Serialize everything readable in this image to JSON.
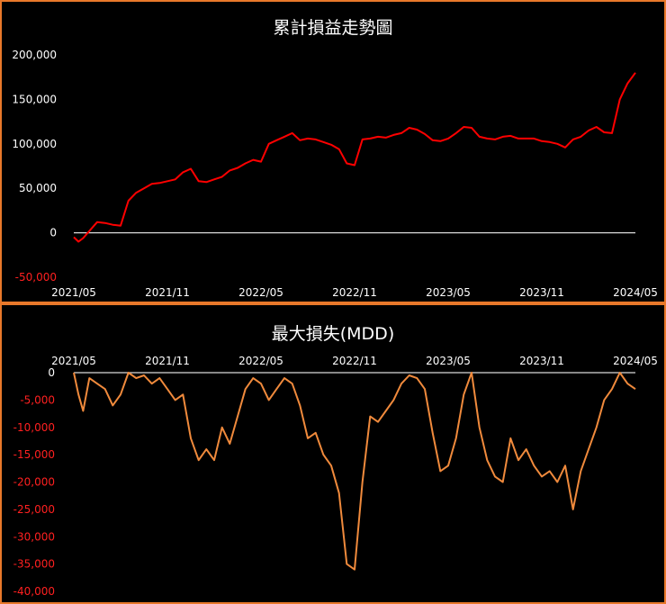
{
  "chart_data": [
    {
      "type": "line",
      "title": "累計損益走勢圖",
      "xlabel": "",
      "ylabel": "",
      "ylim": [
        -50000,
        200000
      ],
      "yticks": [
        {
          "v": 200000,
          "label": "200,000",
          "color": "#ffffff"
        },
        {
          "v": 150000,
          "label": "150,000",
          "color": "#ffffff"
        },
        {
          "v": 100000,
          "label": "100,000",
          "color": "#ffffff"
        },
        {
          "v": 50000,
          "label": "50,000",
          "color": "#ffffff"
        },
        {
          "v": 0,
          "label": "0",
          "color": "#ffffff"
        },
        {
          "v": -50000,
          "label": "-50,000",
          "color": "#ff2020"
        }
      ],
      "xticks": [
        "2021/05",
        "2021/11",
        "2022/05",
        "2022/11",
        "2023/05",
        "2023/11",
        "2024/05"
      ],
      "zero_line": true,
      "line_color": "#ff0000",
      "series": [
        {
          "x": [
            0,
            0.3,
            0.6,
            1,
            1.5,
            2,
            2.5,
            3,
            3.5,
            4,
            4.5,
            5,
            5.5,
            6,
            6.5,
            7,
            7.5,
            8,
            8.5,
            9,
            9.5,
            10,
            10.5,
            11,
            11.5,
            12,
            12.5,
            13,
            13.5,
            14,
            14.5,
            15,
            15.5,
            16,
            16.5,
            17,
            17.5,
            18,
            18.5,
            19,
            19.5,
            20,
            20.5,
            21,
            21.5,
            22,
            22.5,
            23,
            23.5,
            24,
            24.5,
            25,
            25.5,
            26,
            26.5,
            27,
            27.5,
            28,
            28.5,
            29,
            29.5,
            30,
            30.5,
            31,
            31.5,
            32,
            32.5,
            33,
            33.5,
            34,
            34.5,
            35,
            35.5,
            36
          ],
          "y": [
            -5000,
            -10000,
            -6000,
            2000,
            12000,
            11000,
            9000,
            8000,
            36000,
            45000,
            50000,
            55000,
            56000,
            58000,
            60000,
            68000,
            72000,
            58000,
            57000,
            60000,
            63000,
            70000,
            73000,
            78000,
            82000,
            80000,
            100000,
            104000,
            108000,
            112000,
            104000,
            106000,
            105000,
            102000,
            99000,
            94000,
            78000,
            76000,
            105000,
            106000,
            108000,
            107000,
            110000,
            112000,
            118000,
            116000,
            111000,
            104000,
            103000,
            106000,
            112000,
            119000,
            118000,
            108000,
            106000,
            105000,
            108000,
            109000,
            106000,
            106000,
            106000,
            103000,
            102000,
            100000,
            96000,
            105000,
            108000,
            115000,
            119000,
            113000,
            112000,
            150000,
            168000,
            180000
          ]
        }
      ]
    },
    {
      "type": "line",
      "title": "最大損失(MDD)",
      "xlabel": "",
      "ylabel": "",
      "ylim": [
        -40000,
        0
      ],
      "yticks": [
        {
          "v": 0,
          "label": "0",
          "color": "#ffffff"
        },
        {
          "v": -5000,
          "label": "-5,000",
          "color": "#ff2020"
        },
        {
          "v": -10000,
          "label": "-10,000",
          "color": "#ff2020"
        },
        {
          "v": -15000,
          "label": "-15,000",
          "color": "#ff2020"
        },
        {
          "v": -20000,
          "label": "-20,000",
          "color": "#ff2020"
        },
        {
          "v": -25000,
          "label": "-25,000",
          "color": "#ff2020"
        },
        {
          "v": -30000,
          "label": "-30,000",
          "color": "#ff2020"
        },
        {
          "v": -35000,
          "label": "-35,000",
          "color": "#ff2020"
        },
        {
          "v": -40000,
          "label": "-40,000",
          "color": "#ff2020"
        }
      ],
      "xticks": [
        "2021/05",
        "2021/11",
        "2022/05",
        "2022/11",
        "2023/05",
        "2023/11",
        "2024/05"
      ],
      "zero_line": true,
      "line_color": "#f08a3c",
      "series": [
        {
          "x": [
            0,
            0.3,
            0.6,
            1,
            1.5,
            2,
            2.5,
            3,
            3.5,
            4,
            4.5,
            5,
            5.5,
            6,
            6.5,
            7,
            7.5,
            8,
            8.5,
            9,
            9.5,
            10,
            10.5,
            11,
            11.5,
            12,
            12.5,
            13,
            13.5,
            14,
            14.5,
            15,
            15.5,
            16,
            16.5,
            17,
            17.5,
            18,
            18.5,
            19,
            19.5,
            20,
            20.5,
            21,
            21.5,
            22,
            22.5,
            23,
            23.5,
            24,
            24.5,
            25,
            25.5,
            26,
            26.5,
            27,
            27.5,
            28,
            28.5,
            29,
            29.5,
            30,
            30.5,
            31,
            31.5,
            32,
            32.5,
            33,
            33.5,
            34,
            34.5,
            35,
            35.5,
            36
          ],
          "y": [
            0,
            -4000,
            -7000,
            -1000,
            -2000,
            -3000,
            -6000,
            -4000,
            0,
            -1000,
            -500,
            -2000,
            -1000,
            -3000,
            -5000,
            -4000,
            -12000,
            -16000,
            -14000,
            -16000,
            -10000,
            -13000,
            -8000,
            -3000,
            -1000,
            -2000,
            -5000,
            -3000,
            -1000,
            -2000,
            -6000,
            -12000,
            -11000,
            -15000,
            -17000,
            -22000,
            -35000,
            -36000,
            -20000,
            -8000,
            -9000,
            -7000,
            -5000,
            -2000,
            -500,
            -1000,
            -3000,
            -11000,
            -18000,
            -17000,
            -12000,
            -4000,
            0,
            -10000,
            -16000,
            -19000,
            -20000,
            -12000,
            -16000,
            -14000,
            -17000,
            -19000,
            -18000,
            -20000,
            -17000,
            -25000,
            -18000,
            -14000,
            -10000,
            -5000,
            -3000,
            0,
            -2000,
            -3000
          ]
        }
      ]
    }
  ]
}
